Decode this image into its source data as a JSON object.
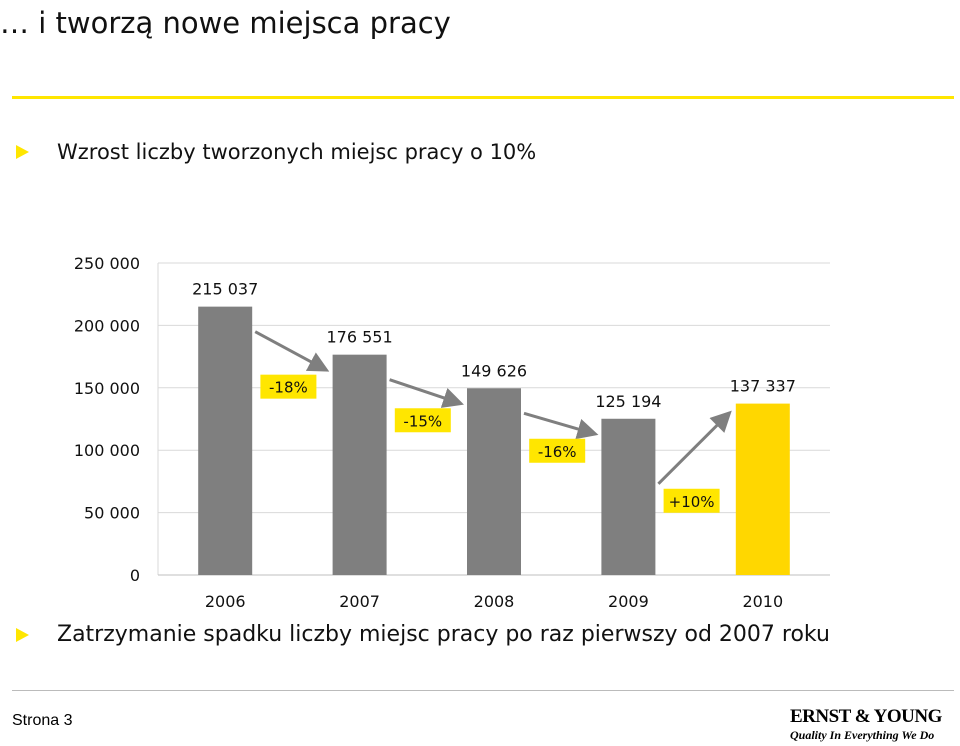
{
  "slide": {
    "title": "… i tworzą nowe miejsca pracy",
    "bullet1": "Wzrost liczby tworzonych miejsc pracy o 10%",
    "bullet2": "Zatrzymanie spadku liczby miejsc pracy po raz pierwszy od 2007 roku",
    "page_label": "Strona 3"
  },
  "logo": {
    "wordmark": "ERNST & YOUNG",
    "tagline": "Quality In Everything We Do"
  },
  "colors": {
    "accent": "#ffe600",
    "bar_gray": "#7f7f7f",
    "bar_highlight": "#ffd700",
    "change_arrow": "#7f7f7f"
  },
  "chart_data": {
    "type": "bar",
    "categories": [
      "2006",
      "2007",
      "2008",
      "2009",
      "2010"
    ],
    "values": [
      215037,
      176551,
      149626,
      125194,
      137337
    ],
    "value_labels": [
      "215 037",
      "176 551",
      "149 626",
      "125 194",
      "137 337"
    ],
    "highlight_index": 4,
    "yticks": [
      0,
      50000,
      100000,
      150000,
      200000,
      250000
    ],
    "ytick_labels": [
      "0",
      "50 000",
      "100 000",
      "150 000",
      "200 000",
      "250 000"
    ],
    "ylim": [
      0,
      250000
    ],
    "grid": true,
    "changes": [
      "-18%",
      "-15%",
      "-16%",
      "+10%"
    ]
  }
}
